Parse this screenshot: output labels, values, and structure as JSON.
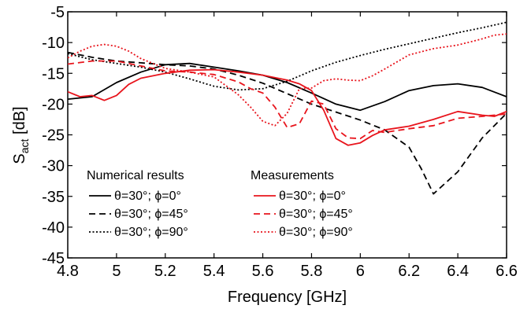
{
  "chart_data": {
    "type": "line",
    "xlabel": "Frequency [GHz]",
    "ylabel_main": "S",
    "ylabel_sub": "act",
    "ylabel_unit": " [dB]",
    "xlim": [
      4.8,
      6.6
    ],
    "ylim": [
      -45,
      -5
    ],
    "x_ticks": [
      4.8,
      5,
      5.2,
      5.4,
      5.6,
      5.8,
      6,
      6.2,
      6.4,
      6.6
    ],
    "x_tick_labels": [
      "4.8",
      "5",
      "5.2",
      "5.4",
      "5.6",
      "5.8",
      "6",
      "6.2",
      "6.4",
      "6.6"
    ],
    "y_ticks": [
      -5,
      -10,
      -15,
      -20,
      -25,
      -30,
      -35,
      -40,
      -45
    ],
    "y_tick_labels": [
      "-5",
      "-10",
      "-15",
      "-20",
      "-25",
      "-30",
      "-35",
      "-40",
      "-45"
    ],
    "grid": false,
    "legend": {
      "placement": "bottom-left",
      "group_numerical": "Numerical results",
      "group_measured": "Measurements"
    },
    "series": [
      {
        "name": "θ=30°; ϕ=0°",
        "group": "numerical",
        "color": "#000000",
        "dash": "solid",
        "x": [
          4.8,
          4.9,
          5.0,
          5.1,
          5.2,
          5.3,
          5.4,
          5.5,
          5.6,
          5.7,
          5.8,
          5.9,
          6.0,
          6.1,
          6.2,
          6.3,
          6.4,
          6.5,
          6.6
        ],
        "y": [
          -19.2,
          -18.8,
          -16.5,
          -14.8,
          -13.6,
          -13.4,
          -14.0,
          -14.6,
          -15.3,
          -16.5,
          -18.2,
          -20.0,
          -21.0,
          -19.6,
          -17.8,
          -17.0,
          -16.7,
          -17.3,
          -18.8
        ]
      },
      {
        "name": "θ=30°; ϕ=45°",
        "group": "numerical",
        "color": "#000000",
        "dash": "dashed",
        "x": [
          4.8,
          4.9,
          5.0,
          5.1,
          5.2,
          5.3,
          5.4,
          5.5,
          5.6,
          5.7,
          5.8,
          5.9,
          6.0,
          6.1,
          6.2,
          6.25,
          6.3,
          6.4,
          6.5,
          6.6
        ],
        "y": [
          -11.6,
          -12.4,
          -13.0,
          -13.3,
          -13.6,
          -13.8,
          -14.3,
          -15.3,
          -16.6,
          -18.3,
          -20.0,
          -21.3,
          -22.6,
          -24.2,
          -27.0,
          -30.5,
          -34.6,
          -31.0,
          -25.5,
          -21.5
        ]
      },
      {
        "name": "θ=30°; ϕ=90°",
        "group": "numerical",
        "color": "#000000",
        "dash": "dotted",
        "x": [
          4.8,
          4.9,
          5.0,
          5.1,
          5.2,
          5.3,
          5.4,
          5.5,
          5.6,
          5.7,
          5.8,
          5.9,
          6.0,
          6.1,
          6.2,
          6.3,
          6.4,
          6.5,
          6.6
        ],
        "y": [
          -11.8,
          -12.8,
          -13.4,
          -14.0,
          -14.8,
          -15.9,
          -17.1,
          -17.7,
          -17.5,
          -16.3,
          -14.6,
          -13.2,
          -12.1,
          -11.1,
          -10.2,
          -9.3,
          -8.4,
          -7.6,
          -6.7
        ]
      },
      {
        "name": "θ=30°; ϕ=0°",
        "group": "measured",
        "color": "#e8141c",
        "dash": "solid",
        "x": [
          4.8,
          4.85,
          4.9,
          4.95,
          5.0,
          5.05,
          5.1,
          5.2,
          5.3,
          5.4,
          5.5,
          5.6,
          5.7,
          5.75,
          5.8,
          5.85,
          5.9,
          5.95,
          6.0,
          6.05,
          6.1,
          6.2,
          6.3,
          6.4,
          6.5,
          6.55,
          6.6
        ],
        "y": [
          -18.0,
          -18.8,
          -18.6,
          -19.4,
          -18.6,
          -16.8,
          -15.8,
          -15.0,
          -14.5,
          -14.4,
          -14.8,
          -15.3,
          -16.1,
          -16.7,
          -17.8,
          -21.0,
          -25.6,
          -26.7,
          -26.3,
          -25.1,
          -24.2,
          -23.6,
          -22.5,
          -21.2,
          -21.8,
          -22.0,
          -21.2
        ]
      },
      {
        "name": "θ=30°; ϕ=45°",
        "group": "measured",
        "color": "#e8141c",
        "dash": "dashed",
        "x": [
          4.8,
          4.9,
          5.0,
          5.1,
          5.2,
          5.3,
          5.4,
          5.5,
          5.55,
          5.6,
          5.65,
          5.7,
          5.75,
          5.8,
          5.85,
          5.9,
          5.95,
          6.0,
          6.05,
          6.1,
          6.2,
          6.3,
          6.4,
          6.5,
          6.6
        ],
        "y": [
          -13.5,
          -13.0,
          -13.0,
          -13.8,
          -14.6,
          -14.8,
          -15.2,
          -16.4,
          -17.5,
          -18.2,
          -20.5,
          -23.8,
          -23.2,
          -19.5,
          -20.0,
          -24.0,
          -25.5,
          -25.6,
          -24.3,
          -24.6,
          -24.0,
          -23.5,
          -22.3,
          -22.0,
          -21.6
        ]
      },
      {
        "name": "θ=30°; ϕ=90°",
        "group": "measured",
        "color": "#e8141c",
        "dash": "dotted",
        "x": [
          4.8,
          4.85,
          4.9,
          4.95,
          5.0,
          5.05,
          5.1,
          5.2,
          5.3,
          5.4,
          5.5,
          5.55,
          5.6,
          5.65,
          5.7,
          5.75,
          5.8,
          5.85,
          5.9,
          5.95,
          6.0,
          6.05,
          6.1,
          6.2,
          6.3,
          6.4,
          6.5,
          6.55,
          6.6
        ],
        "y": [
          -12.5,
          -11.4,
          -10.6,
          -10.3,
          -10.6,
          -11.4,
          -12.6,
          -14.2,
          -14.8,
          -15.6,
          -18.5,
          -20.5,
          -22.8,
          -23.5,
          -21.5,
          -17.5,
          -17.4,
          -16.2,
          -15.9,
          -16.1,
          -16.2,
          -15.4,
          -14.3,
          -12.0,
          -11.0,
          -10.4,
          -9.4,
          -8.8,
          -8.6
        ]
      }
    ]
  }
}
